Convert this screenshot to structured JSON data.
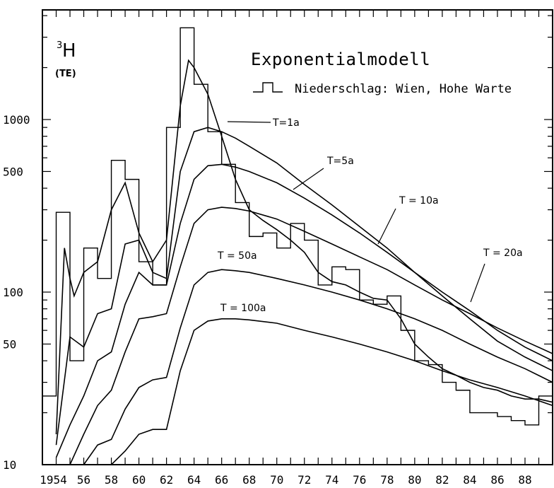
{
  "chart_data": {
    "type": "line",
    "title": "Exponentialmodell",
    "ylabel_main": "3H",
    "ylabel_main_sup": "3",
    "ylabel_main_symbol": "H",
    "ylabel_unit": "(TE)",
    "legend": {
      "entries": [
        {
          "name": "Niederschlag: Wien, Hohe Warte",
          "type": "step"
        }
      ],
      "placement": "top-right"
    },
    "y_scale": "log",
    "ylim": [
      10,
      5000
    ],
    "xlim": [
      1953,
      1990
    ],
    "y_ticks": [
      {
        "value": 10,
        "label": "10"
      },
      {
        "value": 50,
        "label": "50"
      },
      {
        "value": 100,
        "label": "100"
      },
      {
        "value": 500,
        "label": "500"
      },
      {
        "value": 1000,
        "label": "1000"
      }
    ],
    "x_ticks": [
      {
        "value": 1954,
        "label": "1954"
      },
      {
        "value": 1956,
        "label": "56"
      },
      {
        "value": 1958,
        "label": "58"
      },
      {
        "value": 1960,
        "label": "60"
      },
      {
        "value": 1962,
        "label": "62"
      },
      {
        "value": 1964,
        "label": "64"
      },
      {
        "value": 1966,
        "label": "66"
      },
      {
        "value": 1968,
        "label": "68"
      },
      {
        "value": 1970,
        "label": "70"
      },
      {
        "value": 1972,
        "label": "72"
      },
      {
        "value": 1974,
        "label": "74"
      },
      {
        "value": 1976,
        "label": "76"
      },
      {
        "value": 1978,
        "label": "78"
      },
      {
        "value": 1980,
        "label": "80"
      },
      {
        "value": 1982,
        "label": "82"
      },
      {
        "value": 1984,
        "label": "84"
      },
      {
        "value": 1986,
        "label": "86"
      },
      {
        "value": 1988,
        "label": "88"
      }
    ],
    "precipitation_steps": {
      "name": "Niederschlag: Wien, Hohe Warte",
      "x": [
        1953,
        1954,
        1955,
        1956,
        1957,
        1958,
        1959,
        1960,
        1961,
        1962,
        1963,
        1964,
        1965,
        1966,
        1967,
        1968,
        1969,
        1970,
        1971,
        1972,
        1973,
        1974,
        1975,
        1976,
        1977,
        1978,
        1979,
        1980,
        1981,
        1982,
        1983,
        1984,
        1985,
        1986,
        1987,
        1988,
        1989
      ],
      "values": [
        25,
        290,
        40,
        180,
        120,
        580,
        450,
        150,
        110,
        900,
        3400,
        1600,
        850,
        550,
        330,
        210,
        220,
        180,
        250,
        200,
        110,
        140,
        135,
        90,
        85,
        95,
        60,
        40,
        38,
        30,
        27,
        20,
        20,
        19,
        18,
        17,
        25
      ]
    },
    "series": [
      {
        "name": "T=1a",
        "label": "T=1a",
        "x": [
          1954,
          1954.6,
          1955,
          1955.3,
          1956,
          1957,
          1958,
          1959,
          1960,
          1961,
          1962,
          1963,
          1963.6,
          1964,
          1965,
          1966,
          1967,
          1968,
          1969,
          1970,
          1971,
          1972,
          1973,
          1974,
          1975,
          1976,
          1977,
          1978,
          1979,
          1980,
          1981,
          1982,
          1983,
          1984,
          1985,
          1986,
          1987,
          1988,
          1989,
          1990
        ],
        "values": [
          15,
          180,
          120,
          95,
          130,
          150,
          300,
          430,
          220,
          150,
          200,
          1200,
          2200,
          2000,
          1400,
          800,
          450,
          300,
          260,
          230,
          200,
          170,
          130,
          115,
          110,
          100,
          92,
          90,
          70,
          50,
          42,
          36,
          33,
          30,
          28,
          27,
          25,
          24,
          24,
          23
        ]
      },
      {
        "name": "T=5a",
        "label": "T=5a",
        "x": [
          1954,
          1955,
          1956,
          1957,
          1958,
          1959,
          1960,
          1961,
          1962,
          1963,
          1964,
          1965,
          1966,
          1967,
          1968,
          1970,
          1972,
          1974,
          1976,
          1978,
          1980,
          1982,
          1984,
          1986,
          1988,
          1990
        ],
        "values": [
          13,
          55,
          48,
          75,
          80,
          190,
          200,
          130,
          120,
          500,
          850,
          900,
          850,
          780,
          700,
          560,
          420,
          320,
          240,
          180,
          130,
          95,
          70,
          52,
          42,
          35
        ]
      },
      {
        "name": "T=10a",
        "label": "T = 10a",
        "x": [
          1954,
          1955,
          1956,
          1957,
          1958,
          1959,
          1960,
          1961,
          1962,
          1963,
          1964,
          1965,
          1966,
          1967,
          1968,
          1970,
          1972,
          1974,
          1976,
          1978,
          1980,
          1982,
          1984,
          1986,
          1988,
          1990
        ],
        "values": [
          11,
          17,
          25,
          40,
          45,
          85,
          130,
          110,
          110,
          250,
          450,
          540,
          550,
          530,
          500,
          430,
          350,
          280,
          220,
          170,
          130,
          100,
          78,
          60,
          48,
          40
        ]
      },
      {
        "name": "T=20a",
        "label": "T = 20a",
        "x": [
          1955,
          1956,
          1957,
          1958,
          1959,
          1960,
          1961,
          1962,
          1963,
          1964,
          1965,
          1966,
          1967,
          1968,
          1970,
          1972,
          1974,
          1976,
          1978,
          1980,
          1982,
          1984,
          1986,
          1988,
          1990
        ],
        "values": [
          10,
          15,
          22,
          27,
          45,
          70,
          72,
          75,
          140,
          250,
          300,
          310,
          305,
          295,
          265,
          225,
          190,
          160,
          135,
          110,
          90,
          75,
          62,
          52,
          44
        ]
      },
      {
        "name": "T=50a",
        "label": "T = 50a",
        "x": [
          1956,
          1957,
          1958,
          1959,
          1960,
          1961,
          1962,
          1963,
          1964,
          1965,
          1966,
          1967,
          1968,
          1970,
          1972,
          1974,
          1976,
          1978,
          1980,
          1982,
          1984,
          1986,
          1988,
          1990
        ],
        "values": [
          10,
          13,
          14,
          21,
          28,
          31,
          32,
          62,
          110,
          130,
          135,
          133,
          130,
          120,
          110,
          100,
          90,
          80,
          70,
          60,
          50,
          42,
          36,
          30
        ]
      },
      {
        "name": "T=100a",
        "label": "T = 100a",
        "x": [
          1957.5,
          1958,
          1959,
          1960,
          1961,
          1962,
          1963,
          1964,
          1965,
          1966,
          1967,
          1968,
          1970,
          1972,
          1974,
          1976,
          1978,
          1980,
          1982,
          1984,
          1986,
          1988,
          1990
        ],
        "values": [
          9,
          10,
          12,
          15,
          16,
          16,
          35,
          60,
          68,
          70,
          70,
          69,
          66,
          60,
          55,
          50,
          45,
          40,
          35,
          31,
          28,
          25,
          22
        ]
      }
    ]
  }
}
